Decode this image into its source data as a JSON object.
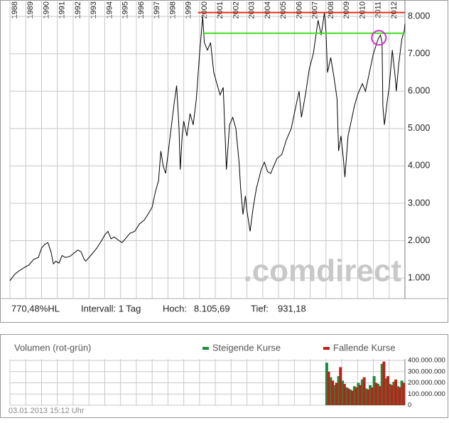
{
  "chart_data": [
    {
      "type": "line",
      "color": "#000000",
      "xlim": [
        1988,
        2013
      ],
      "xticks": [
        1988,
        1989,
        1990,
        1991,
        1992,
        1993,
        1994,
        1995,
        1996,
        1997,
        1998,
        1999,
        2000,
        2001,
        2002,
        2003,
        2004,
        2005,
        2006,
        2007,
        2008,
        2009,
        2010,
        2011,
        2012
      ],
      "ylim": [
        450,
        8440
      ],
      "yticks": [
        {
          "value": 1000,
          "label": "1.000"
        },
        {
          "value": 2000,
          "label": "2.000"
        },
        {
          "value": 3000,
          "label": "3.000"
        },
        {
          "value": 4000,
          "label": "4.000"
        },
        {
          "value": 5000,
          "label": "5.000"
        },
        {
          "value": 6000,
          "label": "6.000"
        },
        {
          "value": 7000,
          "label": "7.000"
        },
        {
          "value": 8000,
          "label": "8.000"
        }
      ],
      "grid": true,
      "x": [
        1988.0,
        1988.3,
        1988.6,
        1988.9,
        1989.2,
        1989.5,
        1989.8,
        1990.0,
        1990.2,
        1990.4,
        1990.6,
        1990.75,
        1990.9,
        1991.1,
        1991.3,
        1991.5,
        1991.8,
        1992.0,
        1992.3,
        1992.5,
        1992.7,
        1992.8,
        1993.0,
        1993.3,
        1993.5,
        1993.8,
        1994.0,
        1994.2,
        1994.4,
        1994.6,
        1994.9,
        1995.1,
        1995.3,
        1995.6,
        1995.9,
        1996.2,
        1996.5,
        1996.8,
        1997.0,
        1997.2,
        1997.4,
        1997.55,
        1997.7,
        1997.85,
        1998.0,
        1998.2,
        1998.4,
        1998.55,
        1998.7,
        1998.78,
        1998.9,
        1999.0,
        1999.2,
        1999.4,
        1999.6,
        1999.8,
        2000.0,
        2000.2,
        2000.3,
        2000.5,
        2000.7,
        2000.9,
        2001.1,
        2001.3,
        2001.5,
        2001.7,
        2001.9,
        2002.1,
        2002.3,
        2002.5,
        2002.6,
        2002.75,
        2002.9,
        2003.0,
        2003.2,
        2003.4,
        2003.6,
        2003.9,
        2004.1,
        2004.3,
        2004.5,
        2004.7,
        2004.9,
        2005.2,
        2005.5,
        2005.8,
        2006.1,
        2006.3,
        2006.45,
        2006.7,
        2006.95,
        2007.2,
        2007.5,
        2007.7,
        2007.9,
        2008.0,
        2008.1,
        2008.3,
        2008.5,
        2008.7,
        2008.8,
        2008.95,
        2009.1,
        2009.2,
        2009.4,
        2009.6,
        2009.8,
        2010.0,
        2010.3,
        2010.5,
        2010.8,
        2011.0,
        2011.3,
        2011.45,
        2011.55,
        2011.6,
        2011.7,
        2011.9,
        2012.0,
        2012.2,
        2012.4,
        2012.45,
        2012.6,
        2012.8,
        2012.95,
        2013.0
      ],
      "values": [
        930,
        1100,
        1200,
        1280,
        1350,
        1500,
        1550,
        1800,
        1900,
        1950,
        1700,
        1380,
        1450,
        1400,
        1600,
        1550,
        1580,
        1650,
        1750,
        1700,
        1500,
        1450,
        1550,
        1700,
        1800,
        2000,
        2150,
        2250,
        2050,
        2100,
        2000,
        1950,
        2050,
        2200,
        2250,
        2450,
        2550,
        2750,
        2900,
        3300,
        3600,
        4400,
        4000,
        3800,
        4300,
        5000,
        5700,
        6150,
        5000,
        3900,
        4800,
        5200,
        4800,
        5400,
        5100,
        5800,
        7000,
        8000,
        7300,
        7100,
        7300,
        6500,
        6200,
        5900,
        6100,
        3900,
        5100,
        5300,
        5000,
        4100,
        3400,
        2700,
        3200,
        2800,
        2250,
        2900,
        3400,
        3900,
        4100,
        3850,
        3800,
        4000,
        4200,
        4300,
        4700,
        5000,
        5600,
        6000,
        5300,
        5900,
        6600,
        7000,
        7900,
        7500,
        8100,
        7600,
        6500,
        6900,
        6400,
        5800,
        4400,
        4800,
        4200,
        3700,
        4800,
        5200,
        5600,
        5900,
        6200,
        6000,
        6600,
        7000,
        7400,
        7500,
        7300,
        5600,
        5100,
        5800,
        6100,
        7100,
        6300,
        6000,
        6700,
        7400,
        7600,
        7800
      ],
      "hlines": [
        {
          "value": 8105.69,
          "from": 1999.9,
          "color": "#e0301e"
        },
        {
          "value": 7550,
          "from": 2000.2,
          "color": "#44dd22"
        }
      ],
      "circle": {
        "x": 2011.35,
        "value": 7430,
        "color": "#d030d0"
      },
      "watermark": ".comdirect",
      "stats": [
        "770,48%HL",
        "Intervall: 1 Tag",
        "Hoch:",
        "8.105,69",
        "Tief:",
        "931,18"
      ]
    },
    {
      "type": "bar",
      "title": "Volumen (rot-grün)",
      "xlim": [
        1988,
        2013
      ],
      "xticks": [
        1988,
        1989,
        1990,
        1991,
        1992,
        1993,
        1994,
        1995,
        1996,
        1997,
        1998,
        1999,
        2000,
        2001,
        2002,
        2003,
        2004,
        2005,
        2006,
        2007,
        2008,
        2009,
        2010,
        2011,
        2012
      ],
      "ylim": [
        0,
        413000000
      ],
      "yticks": [
        0,
        {
          "value": 100000000,
          "label": "100.000.000"
        },
        {
          "value": 200000000,
          "label": "200.000.000"
        },
        {
          "value": 300000000,
          "label": "300.000.000"
        },
        {
          "value": 400000000,
          "label": "400.000.000"
        }
      ],
      "grid": true,
      "series": [
        {
          "name": "Steigende Kurse",
          "color": "#1f8a3a",
          "x": [
            2008.05,
            2008.3,
            2008.55,
            2008.8,
            2009.05,
            2009.3,
            2009.55,
            2009.8,
            2010.05,
            2010.3,
            2010.55,
            2010.8,
            2011.05,
            2011.3,
            2011.55,
            2011.8,
            2012.05,
            2012.3,
            2012.55,
            2012.8
          ],
          "values": [
            380000000,
            250000000,
            180000000,
            260000000,
            220000000,
            160000000,
            140000000,
            170000000,
            200000000,
            230000000,
            150000000,
            180000000,
            260000000,
            190000000,
            370000000,
            240000000,
            190000000,
            210000000,
            170000000,
            220000000
          ]
        },
        {
          "name": "Fallende Kurse",
          "color": "#c0201a",
          "x": [
            2008.17,
            2008.42,
            2008.67,
            2008.92,
            2009.17,
            2009.42,
            2009.67,
            2009.92,
            2010.17,
            2010.42,
            2010.67,
            2010.92,
            2011.17,
            2011.42,
            2011.67,
            2011.92,
            2012.17,
            2012.42,
            2012.67,
            2012.92
          ],
          "values": [
            300000000,
            220000000,
            200000000,
            340000000,
            190000000,
            150000000,
            130000000,
            160000000,
            180000000,
            250000000,
            140000000,
            160000000,
            200000000,
            170000000,
            390000000,
            260000000,
            180000000,
            230000000,
            160000000,
            200000000
          ]
        }
      ],
      "timestamp": "03.01.2013 15:12 Uhr"
    }
  ]
}
